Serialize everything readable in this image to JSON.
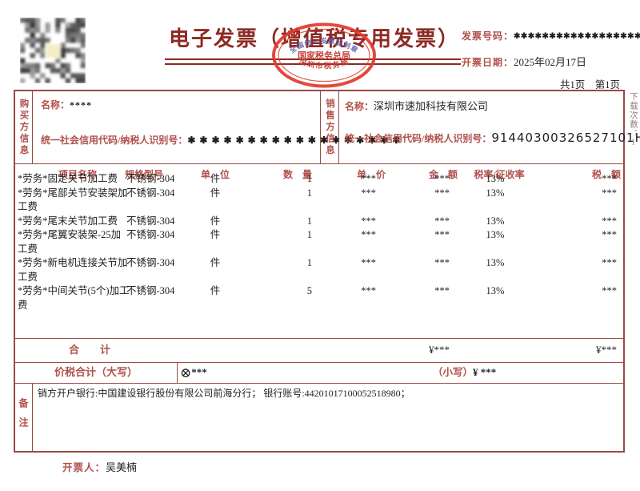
{
  "header": {
    "title": "电子发票（增值税专用发票）",
    "invoice_no_label": "发票号码：",
    "invoice_no_value": "✱✱✱✱✱✱✱✱✱✱✱✱✱✱✱✱✱✱✱✱",
    "date_label": "开票日期：",
    "date_value": "2025年02月17日",
    "pages": "共1页　第1页"
  },
  "stamp": {
    "arc_top": "全国统一发票监制章",
    "center": "国家税务总局",
    "arc_bottom": "深圳市税务局"
  },
  "buyer": {
    "side_label": "购买方信息",
    "name_label": "名称：",
    "name_value": "****",
    "tax_label": "统一社会信用代码/纳税人识别号：",
    "tax_value": "✱ ✱ ✱ ✱ ✱ ✱ ✱ ✱ ✱ ✱ ✱ ✱ ✱ ✱ ✱ ✱ ✱ ✱"
  },
  "seller": {
    "side_label": "销售方信息",
    "name_label": "名称：",
    "name_value": "深圳市速加科技有限公司",
    "tax_label": "统一社会信用代码/纳税人识别号：",
    "tax_value": "91440300326527101H"
  },
  "items": {
    "headers": [
      "项目名称",
      "规格型号",
      "单　位",
      "数　量",
      "单　价",
      "金　额",
      "税率/征收率",
      "税　额"
    ],
    "rows": [
      {
        "name": "*劳务*固定关节加工费",
        "spec": "不锈钢-304",
        "unit": "件",
        "qty": "1",
        "price": "***",
        "amount": "***",
        "rate": "13%",
        "tax": "***"
      },
      {
        "name": "*劳务*尾部关节安装架加工费",
        "spec": "不锈钢-304",
        "unit": "件",
        "qty": "1",
        "price": "***",
        "amount": "***",
        "rate": "13%",
        "tax": "***"
      },
      {
        "name": "*劳务*尾末关节加工费",
        "spec": "不锈钢-304",
        "unit": "件",
        "qty": "1",
        "price": "***",
        "amount": "***",
        "rate": "13%",
        "tax": "***"
      },
      {
        "name": "*劳务*尾翼安装架-25加工费",
        "spec": "不锈钢-304",
        "unit": "件",
        "qty": "1",
        "price": "***",
        "amount": "***",
        "rate": "13%",
        "tax": "***"
      },
      {
        "name": "*劳务*新电机连接关节加工费",
        "spec": "不锈钢-304",
        "unit": "件",
        "qty": "1",
        "price": "***",
        "amount": "***",
        "rate": "13%",
        "tax": "***"
      },
      {
        "name": "*劳务*中间关节(5个)加工费",
        "spec": "不锈钢-304",
        "unit": "件",
        "qty": "5",
        "price": "***",
        "amount": "***",
        "rate": "13%",
        "tax": "***"
      }
    ],
    "total_label": "合　　计",
    "total_amount": "¥***",
    "total_tax": "¥***"
  },
  "summary": {
    "label": "价税合计（大写）",
    "daxie_symbol": "⊗",
    "daxie_value": "***",
    "xiaoxie_label": "（小写）",
    "xiaoxie_value": "¥ ***"
  },
  "remarks": {
    "side_label": "备注",
    "content": "销方开户银行:中国建设银行股份有限公司前海分行； 银行账号:44201017100052518980；"
  },
  "footer": {
    "issuer_label": "开票人：",
    "issuer_value": "吴美楠"
  },
  "side_note": "下载次数：1",
  "colors": {
    "border": "#9a4a45",
    "label_red": "#b0504b",
    "title_red": "#8c2a23",
    "stamp_red": "#e23a2e",
    "stamp_arc_blue": "#5a55a8",
    "text": "#1f1f1f"
  }
}
